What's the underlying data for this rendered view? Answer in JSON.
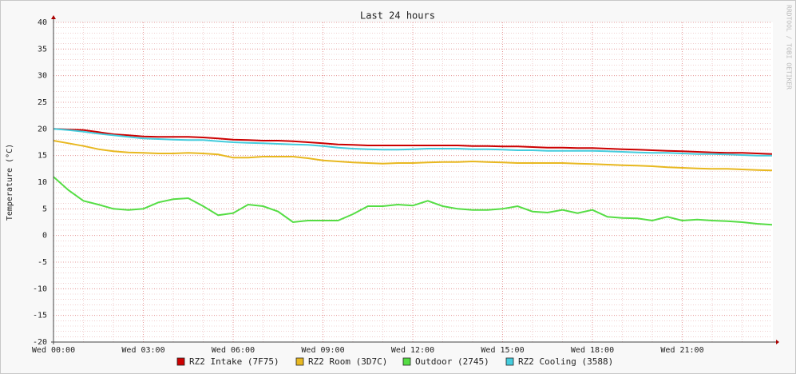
{
  "chart_data": {
    "type": "line",
    "title": "Last 24 hours",
    "y_label": "Temperature (°C)",
    "watermark": "RRDTOOL / TOBI OETIKER",
    "x": [
      0,
      0.5,
      1,
      1.5,
      2,
      2.5,
      3,
      3.5,
      4,
      4.5,
      5,
      5.5,
      6,
      6.5,
      7,
      7.5,
      8,
      8.5,
      9,
      9.5,
      10,
      10.5,
      11,
      11.5,
      12,
      12.5,
      13,
      13.5,
      14,
      14.5,
      15,
      15.5,
      16,
      16.5,
      17,
      17.5,
      18,
      18.5,
      19,
      19.5,
      20,
      20.5,
      21,
      21.5,
      22,
      22.5,
      23,
      23.5,
      24
    ],
    "xlim": [
      0,
      24
    ],
    "xticks": [
      {
        "value": 0,
        "label": "Wed 00:00"
      },
      {
        "value": 3,
        "label": "Wed 03:00"
      },
      {
        "value": 6,
        "label": "Wed 06:00"
      },
      {
        "value": 9,
        "label": "Wed 09:00"
      },
      {
        "value": 12,
        "label": "Wed 12:00"
      },
      {
        "value": 15,
        "label": "Wed 15:00"
      },
      {
        "value": 18,
        "label": "Wed 18:00"
      },
      {
        "value": 21,
        "label": "Wed 21:00"
      }
    ],
    "xminorticks": [
      1,
      2,
      4,
      5,
      7,
      8,
      10,
      11,
      13,
      14,
      16,
      17,
      19,
      20,
      22,
      23
    ],
    "ylim": [
      -20,
      40
    ],
    "yticks": [
      -20,
      -15,
      -10,
      -5,
      0,
      5,
      10,
      15,
      20,
      25,
      30,
      35,
      40
    ],
    "yminorticks": [
      -19,
      -18,
      -17,
      -16,
      -14,
      -13,
      -12,
      -11,
      -9,
      -8,
      -7,
      -6,
      -4,
      -3,
      -2,
      -1,
      1,
      2,
      3,
      4,
      6,
      7,
      8,
      9,
      11,
      12,
      13,
      14,
      16,
      17,
      18,
      19,
      21,
      22,
      23,
      24,
      26,
      27,
      28,
      29,
      31,
      32,
      33,
      34,
      36,
      37,
      38,
      39
    ],
    "grid": true,
    "series": [
      {
        "name": "RZ2 Intake (7F75)",
        "color": "#cc0000",
        "values": [
          20,
          19.9,
          19.8,
          19.4,
          19,
          18.8,
          18.6,
          18.5,
          18.5,
          18.5,
          18.4,
          18.2,
          18,
          17.9,
          17.8,
          17.8,
          17.7,
          17.5,
          17.3,
          17.1,
          17,
          16.9,
          16.9,
          16.9,
          16.9,
          16.9,
          16.9,
          16.9,
          16.8,
          16.8,
          16.7,
          16.7,
          16.6,
          16.5,
          16.5,
          16.4,
          16.4,
          16.3,
          16.2,
          16.1,
          16,
          15.9,
          15.8,
          15.7,
          15.6,
          15.5,
          15.5,
          15.4,
          15.3
        ]
      },
      {
        "name": "RZ2 Room (3D7C)",
        "color": "#e8b820",
        "values": [
          17.8,
          17.3,
          16.8,
          16.2,
          15.8,
          15.6,
          15.5,
          15.4,
          15.4,
          15.5,
          15.4,
          15.2,
          14.6,
          14.6,
          14.8,
          14.8,
          14.8,
          14.5,
          14.1,
          13.9,
          13.7,
          13.6,
          13.5,
          13.6,
          13.6,
          13.7,
          13.8,
          13.8,
          13.9,
          13.8,
          13.7,
          13.6,
          13.6,
          13.6,
          13.6,
          13.5,
          13.4,
          13.3,
          13.2,
          13.1,
          13,
          12.8,
          12.7,
          12.6,
          12.5,
          12.5,
          12.4,
          12.3,
          12.2
        ]
      },
      {
        "name": "Outdoor (2745)",
        "color": "#55dd44",
        "values": [
          11,
          8.5,
          6.5,
          5.8,
          5,
          4.8,
          5,
          6.2,
          6.8,
          7,
          5.5,
          3.8,
          4.2,
          5.8,
          5.5,
          4.5,
          2.5,
          2.8,
          2.8,
          2.8,
          4,
          5.5,
          5.5,
          5.8,
          5.6,
          6.5,
          5.5,
          5,
          4.8,
          4.8,
          5,
          5.5,
          4.5,
          4.3,
          4.8,
          4.2,
          4.8,
          3.5,
          3.3,
          3.2,
          2.8,
          3.5,
          2.8,
          3,
          2.8,
          2.7,
          2.5,
          2.2,
          2
        ]
      },
      {
        "name": "RZ2 Cooling (3588)",
        "color": "#44ccdd",
        "values": [
          20,
          19.8,
          19.5,
          19.1,
          18.8,
          18.5,
          18.2,
          18.1,
          18,
          17.9,
          17.9,
          17.7,
          17.5,
          17.4,
          17.3,
          17.2,
          17.1,
          17,
          16.8,
          16.5,
          16.3,
          16.2,
          16.1,
          16.1,
          16.2,
          16.3,
          16.3,
          16.3,
          16.2,
          16.2,
          16.1,
          16,
          16,
          15.9,
          15.9,
          15.9,
          15.9,
          15.8,
          15.7,
          15.6,
          15.5,
          15.5,
          15.4,
          15.3,
          15.3,
          15.2,
          15.1,
          15,
          15
        ]
      }
    ]
  }
}
